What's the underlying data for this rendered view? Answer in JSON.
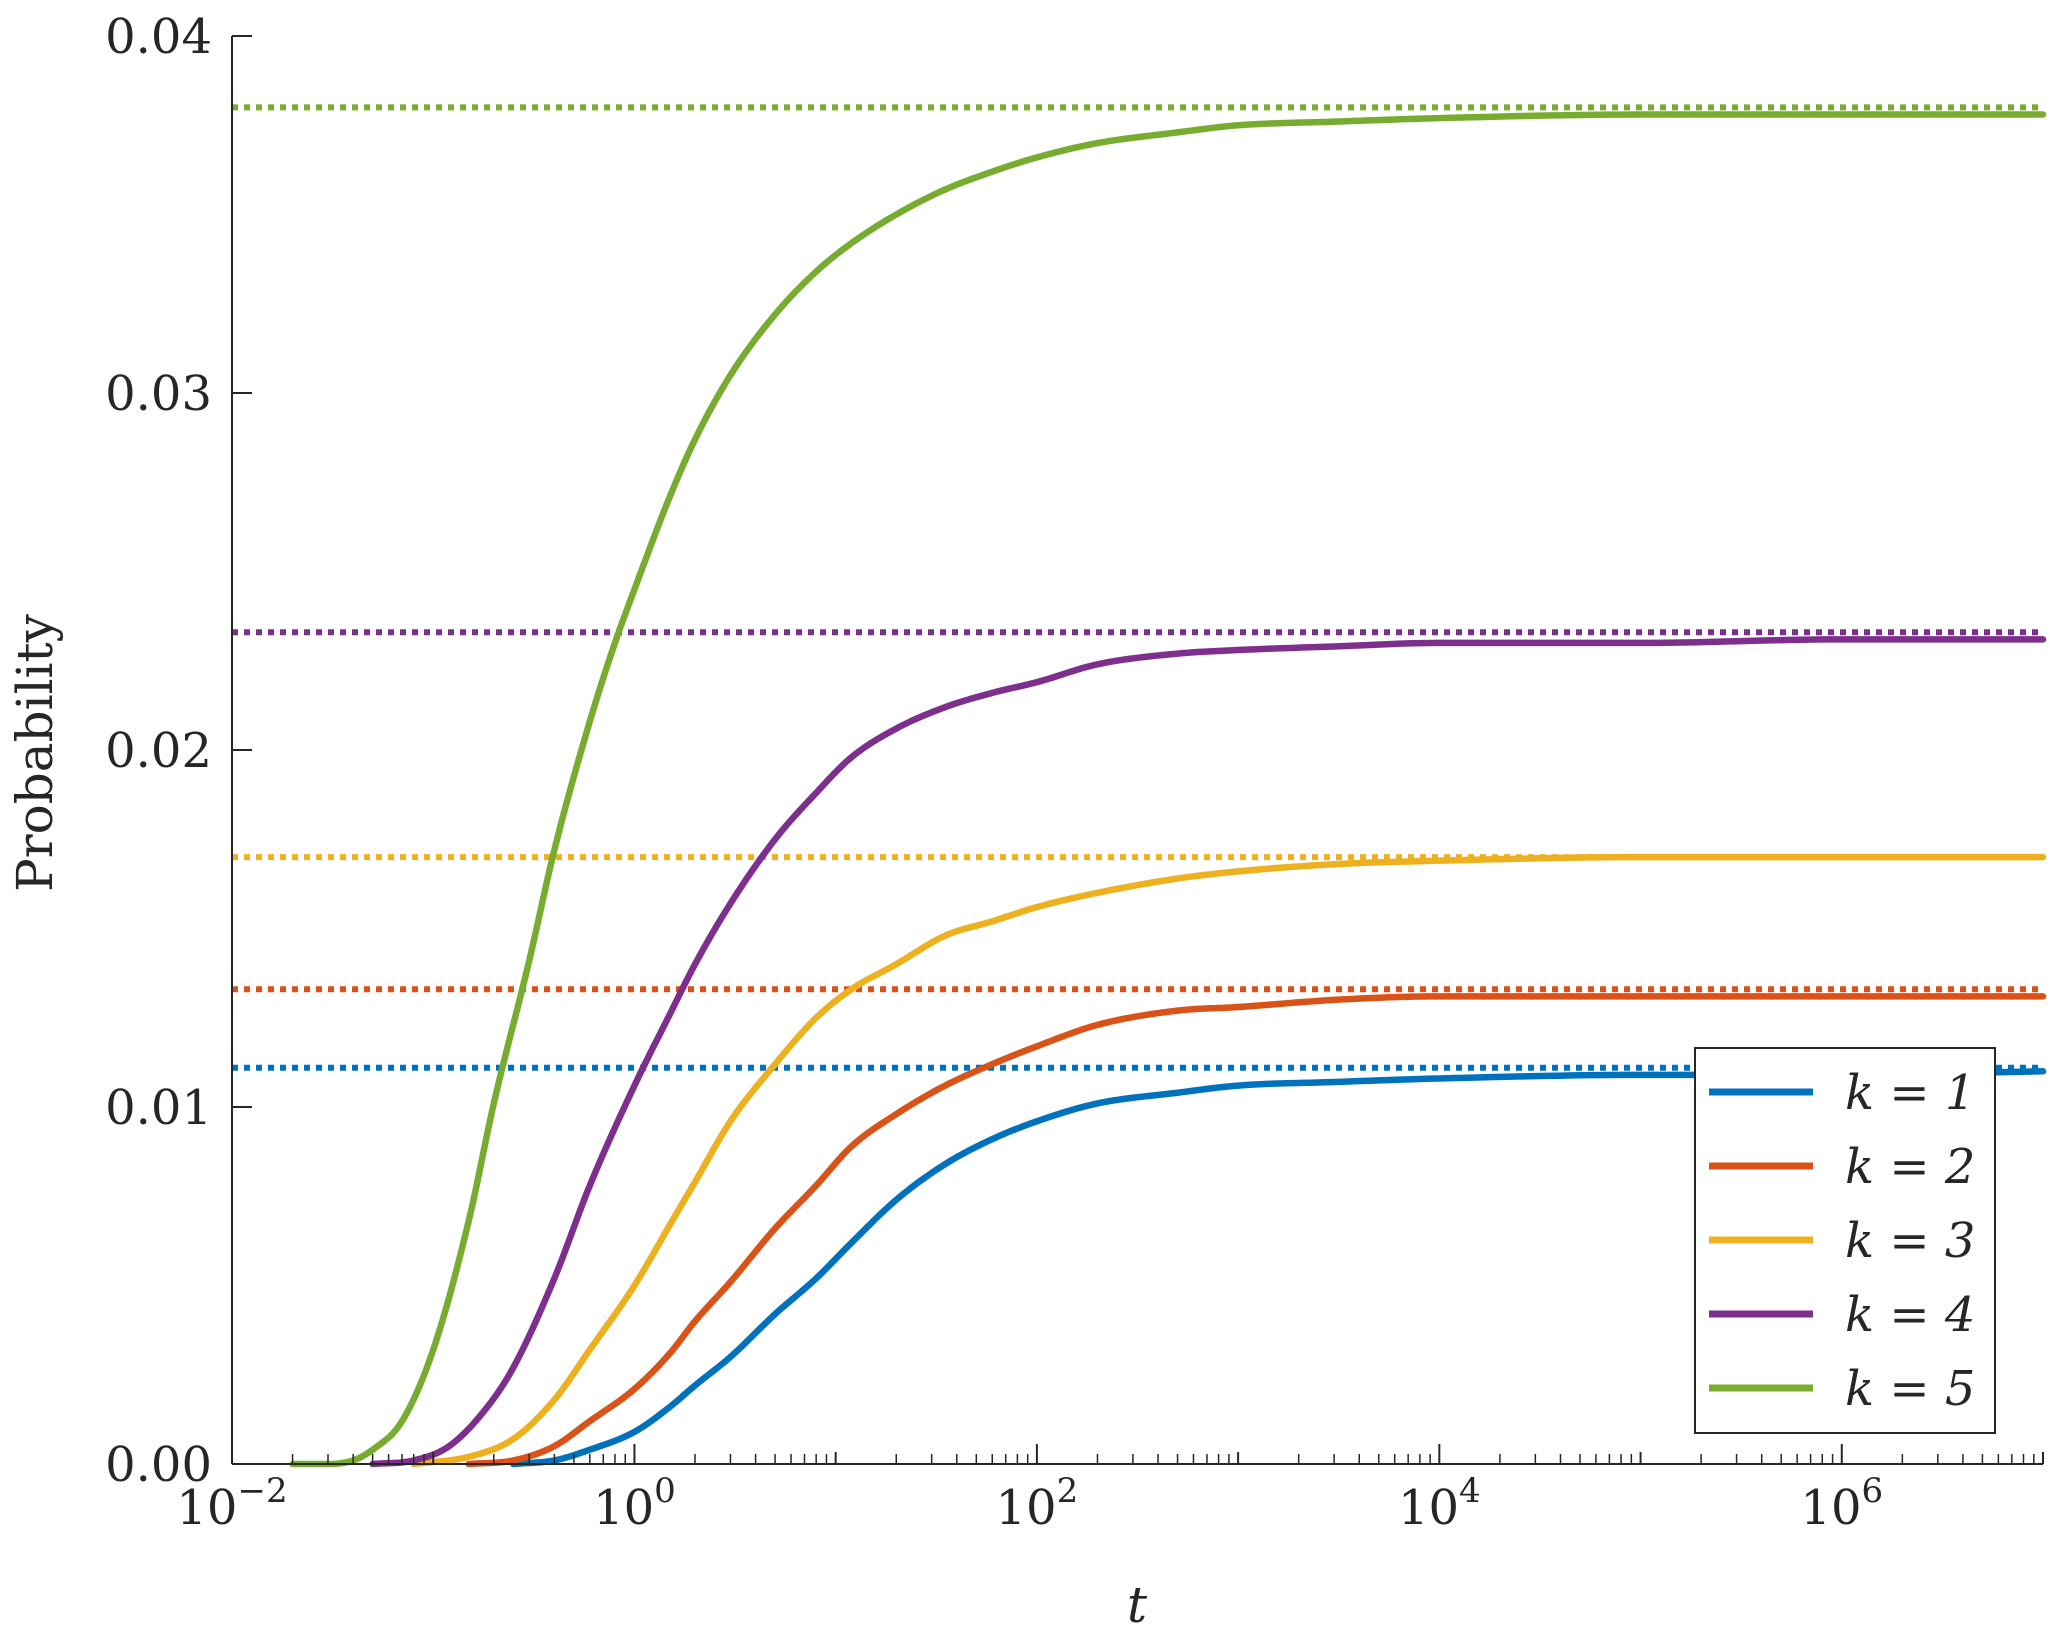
{
  "chart_data": {
    "type": "line",
    "title": "",
    "xlabel": "t",
    "ylabel": "Probability",
    "xscale": "log",
    "xlim": [
      0.01,
      10000000
    ],
    "ylim": [
      0,
      0.04
    ],
    "grid": false,
    "legend_position": "lower-right",
    "x_ticks": [
      {
        "value": 0.01,
        "base": "10",
        "exp": "−2"
      },
      {
        "value": 1,
        "base": "10",
        "exp": "0"
      },
      {
        "value": 100,
        "base": "10",
        "exp": "2"
      },
      {
        "value": 10000,
        "base": "10",
        "exp": "4"
      },
      {
        "value": 1000000,
        "base": "10",
        "exp": "6"
      }
    ],
    "y_ticks": [
      {
        "value": 0,
        "label": "0.00"
      },
      {
        "value": 0.01,
        "label": "0.01"
      },
      {
        "value": 0.02,
        "label": "0.02"
      },
      {
        "value": 0.03,
        "label": "0.03"
      },
      {
        "value": 0.04,
        "label": "0.04"
      }
    ],
    "series": [
      {
        "name": "k = 1",
        "color": "#0072BD",
        "limit": 0.0111,
        "points": [
          [
            0.25,
            0
          ],
          [
            0.4,
            0.0001
          ],
          [
            0.6,
            0.0004
          ],
          [
            1,
            0.0009
          ],
          [
            1.5,
            0.0016
          ],
          [
            2,
            0.0022
          ],
          [
            3,
            0.003
          ],
          [
            5,
            0.0042
          ],
          [
            8,
            0.0052
          ],
          [
            12,
            0.0062
          ],
          [
            20,
            0.0074
          ],
          [
            35,
            0.0084
          ],
          [
            60,
            0.0091
          ],
          [
            100,
            0.0096
          ],
          [
            200,
            0.0101
          ],
          [
            500,
            0.0104
          ],
          [
            1000,
            0.0106
          ],
          [
            3000,
            0.0107
          ],
          [
            10000,
            0.0108
          ],
          [
            100000,
            0.0109
          ],
          [
            1000000,
            0.0109
          ],
          [
            10000000,
            0.011
          ]
        ]
      },
      {
        "name": "k = 2",
        "color": "#D95319",
        "limit": 0.0133,
        "points": [
          [
            0.15,
            0
          ],
          [
            0.25,
            0.0001
          ],
          [
            0.4,
            0.0005
          ],
          [
            0.6,
            0.0012
          ],
          [
            1,
            0.0021
          ],
          [
            1.5,
            0.0031
          ],
          [
            2,
            0.004
          ],
          [
            3,
            0.0051
          ],
          [
            5,
            0.0066
          ],
          [
            8,
            0.0078
          ],
          [
            12,
            0.0089
          ],
          [
            20,
            0.0098
          ],
          [
            35,
            0.0106
          ],
          [
            60,
            0.0112
          ],
          [
            100,
            0.0117
          ],
          [
            200,
            0.0123
          ],
          [
            500,
            0.0127
          ],
          [
            1000,
            0.0128
          ],
          [
            3000,
            0.013
          ],
          [
            10000,
            0.0131
          ],
          [
            100000,
            0.0131
          ],
          [
            1000000,
            0.0131
          ],
          [
            10000000,
            0.0131
          ]
        ]
      },
      {
        "name": "k = 3",
        "color": "#EDB120",
        "limit": 0.017,
        "points": [
          [
            0.08,
            0
          ],
          [
            0.15,
            0.0002
          ],
          [
            0.25,
            0.0007
          ],
          [
            0.4,
            0.0018
          ],
          [
            0.6,
            0.0032
          ],
          [
            1,
            0.005
          ],
          [
            1.5,
            0.0067
          ],
          [
            2,
            0.0079
          ],
          [
            3,
            0.0096
          ],
          [
            5,
            0.0112
          ],
          [
            8,
            0.0125
          ],
          [
            12,
            0.0133
          ],
          [
            20,
            0.014
          ],
          [
            35,
            0.0148
          ],
          [
            60,
            0.0152
          ],
          [
            100,
            0.0156
          ],
          [
            200,
            0.016
          ],
          [
            500,
            0.0164
          ],
          [
            1000,
            0.0166
          ],
          [
            3000,
            0.0168
          ],
          [
            10000,
            0.0169
          ],
          [
            100000,
            0.017
          ],
          [
            1000000,
            0.017
          ],
          [
            10000000,
            0.017
          ]
        ]
      },
      {
        "name": "k = 4",
        "color": "#7E2F8E",
        "limit": 0.0233,
        "points": [
          [
            0.05,
            0
          ],
          [
            0.08,
            0.0001
          ],
          [
            0.12,
            0.0005
          ],
          [
            0.18,
            0.0015
          ],
          [
            0.25,
            0.0027
          ],
          [
            0.4,
            0.0052
          ],
          [
            0.6,
            0.0078
          ],
          [
            1,
            0.0106
          ],
          [
            1.5,
            0.0126
          ],
          [
            2,
            0.014
          ],
          [
            3,
            0.0157
          ],
          [
            5,
            0.0175
          ],
          [
            8,
            0.0188
          ],
          [
            12,
            0.0198
          ],
          [
            20,
            0.0206
          ],
          [
            35,
            0.0212
          ],
          [
            60,
            0.0216
          ],
          [
            100,
            0.0219
          ],
          [
            200,
            0.0224
          ],
          [
            500,
            0.0227
          ],
          [
            1000,
            0.0228
          ],
          [
            3000,
            0.0229
          ],
          [
            10000,
            0.023
          ],
          [
            100000,
            0.023
          ],
          [
            1000000,
            0.0231
          ],
          [
            10000000,
            0.0231
          ]
        ]
      },
      {
        "name": "k = 5",
        "color": "#77AC30",
        "limit": 0.038,
        "points": [
          [
            0.02,
            0
          ],
          [
            0.03,
            0
          ],
          [
            0.04,
            0.0001
          ],
          [
            0.05,
            0.0004
          ],
          [
            0.07,
            0.0012
          ],
          [
            0.1,
            0.0032
          ],
          [
            0.15,
            0.0068
          ],
          [
            0.2,
            0.0101
          ],
          [
            0.3,
            0.0141
          ],
          [
            0.4,
            0.0172
          ],
          [
            0.6,
            0.0208
          ],
          [
            0.8,
            0.023
          ],
          [
            1,
            0.0245
          ],
          [
            1.5,
            0.0271
          ],
          [
            2,
            0.0287
          ],
          [
            3,
            0.0305
          ],
          [
            5,
            0.0322
          ],
          [
            8,
            0.0334
          ],
          [
            12,
            0.0342
          ],
          [
            20,
            0.035
          ],
          [
            35,
            0.0357
          ],
          [
            60,
            0.0362
          ],
          [
            100,
            0.0366
          ],
          [
            200,
            0.037
          ],
          [
            500,
            0.0373
          ],
          [
            1000,
            0.0375
          ],
          [
            3000,
            0.0376
          ],
          [
            10000,
            0.0377
          ],
          [
            100000,
            0.0378
          ],
          [
            1000000,
            0.0378
          ],
          [
            10000000,
            0.0378
          ]
        ]
      }
    ]
  }
}
